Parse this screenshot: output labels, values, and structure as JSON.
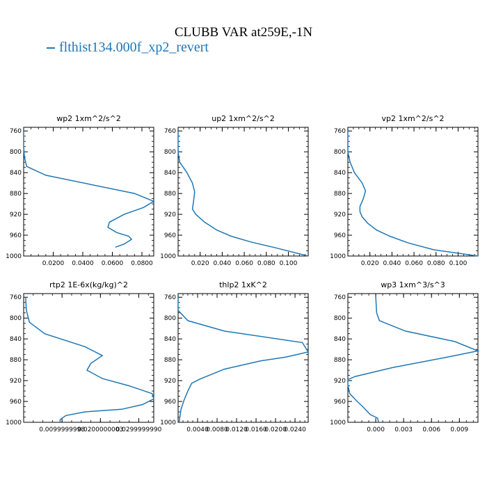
{
  "figure": {
    "title": "CLUBB VAR at259E,-1N",
    "legend_label": "flthist134.000f_xp2_revert",
    "line_color": "#1f77b4"
  },
  "chart_data": [
    {
      "type": "line",
      "title": "wp2  1xm^2/s^2",
      "xlim": [
        0.0,
        0.088
      ],
      "ylim": [
        1000,
        753
      ],
      "y_ticks": [
        760,
        800,
        840,
        880,
        920,
        960,
        1000
      ],
      "x_ticks": [
        0.02,
        0.04,
        0.06,
        0.08
      ],
      "x_tick_labels": [
        "0.0200",
        "0.0400",
        "0.0600",
        "0.0800"
      ],
      "series": [
        {
          "x": [
            0.0,
            0.0,
            0.0005,
            0.002,
            0.015,
            0.075,
            0.088,
            0.081,
            0.068,
            0.058,
            0.057,
            0.063,
            0.071,
            0.073,
            0.068,
            0.062
          ],
          "y": [
            760,
            790,
            810,
            828,
            845,
            880,
            895,
            907,
            920,
            935,
            945,
            955,
            962,
            968,
            977,
            983
          ]
        }
      ]
    },
    {
      "type": "line",
      "title": "up2  1xm^2/s^2",
      "xlim": [
        0.0,
        0.118
      ],
      "ylim": [
        1000,
        753
      ],
      "y_ticks": [
        760,
        800,
        840,
        880,
        920,
        960,
        1000
      ],
      "x_ticks": [
        0.02,
        0.04,
        0.06,
        0.08,
        0.1
      ],
      "x_tick_labels": [
        "0.020",
        "0.040",
        "0.060",
        "0.080",
        "0.100"
      ],
      "series": [
        {
          "x": [
            0.0,
            0.0,
            0.0015,
            0.008,
            0.013,
            0.015,
            0.014,
            0.013,
            0.016,
            0.024,
            0.035,
            0.048,
            0.066,
            0.09,
            0.118
          ],
          "y": [
            760,
            800,
            820,
            840,
            860,
            877,
            895,
            910,
            920,
            935,
            950,
            962,
            973,
            985,
            1000
          ]
        }
      ]
    },
    {
      "type": "line",
      "title": "vp2  1xm^2/s^2",
      "xlim": [
        0.0,
        0.118
      ],
      "ylim": [
        1000,
        753
      ],
      "y_ticks": [
        760,
        800,
        840,
        880,
        920,
        960,
        1000
      ],
      "x_ticks": [
        0.02,
        0.04,
        0.06,
        0.08,
        0.1
      ],
      "x_tick_labels": [
        "0.020",
        "0.040",
        "0.060",
        "0.080",
        "0.100"
      ],
      "series": [
        {
          "x": [
            0.0,
            0.0,
            0.002,
            0.006,
            0.013,
            0.016,
            0.014,
            0.011,
            0.011,
            0.013,
            0.018,
            0.026,
            0.038,
            0.055,
            0.078,
            0.118
          ],
          "y": [
            760,
            800,
            820,
            840,
            860,
            875,
            890,
            905,
            915,
            925,
            937,
            950,
            962,
            975,
            988,
            1000
          ]
        }
      ]
    },
    {
      "type": "line",
      "title": "rtp2  1E-6x(kg/kg)^2",
      "xlim": [
        0.0,
        0.0339
      ],
      "ylim": [
        1000,
        753
      ],
      "y_ticks": [
        760,
        800,
        840,
        880,
        920,
        960,
        1000
      ],
      "x_ticks": [
        0.0099999998,
        0.0200000003,
        0.029999999
      ],
      "x_tick_labels": [
        "0.0099999998",
        "0.0200000003",
        "0.0299999990"
      ],
      "series": [
        {
          "x": [
            0.0005,
            0.0007,
            0.0015,
            0.0055,
            0.016,
            0.0205,
            0.0175,
            0.0165,
            0.0205,
            0.0275,
            0.0335,
            0.0339,
            0.031,
            0.0255,
            0.016,
            0.011,
            0.0095,
            0.0095
          ],
          "y": [
            760,
            785,
            808,
            830,
            855,
            872,
            887,
            900,
            916,
            930,
            945,
            955,
            966,
            975,
            980,
            987,
            995,
            1000
          ]
        }
      ]
    },
    {
      "type": "line",
      "title": "thlp2  1xK^2",
      "xlim": [
        0.0,
        0.0267
      ],
      "ylim": [
        1000,
        753
      ],
      "y_ticks": [
        760,
        800,
        840,
        880,
        920,
        960,
        1000
      ],
      "x_ticks": [
        0.004,
        0.008,
        0.012,
        0.016,
        0.02,
        0.024
      ],
      "x_tick_labels": [
        "0.0040",
        "0.0080",
        "0.0120",
        "0.0160",
        "0.0200",
        "0.0240"
      ],
      "series": [
        {
          "x": [
            0.0,
            0.0,
            0.0005,
            0.002,
            0.0095,
            0.0255,
            0.0267,
            0.022,
            0.017,
            0.0095,
            0.0045,
            0.0028,
            0.002,
            0.0012,
            0.0006,
            0.0002
          ],
          "y": [
            760,
            785,
            790,
            805,
            825,
            847,
            865,
            875,
            882,
            898,
            917,
            925,
            940,
            958,
            975,
            1000
          ]
        }
      ]
    },
    {
      "type": "line",
      "title": "wp3  1xm^3/s^3",
      "xlim": [
        -0.003,
        0.011
      ],
      "ylim": [
        1000,
        753
      ],
      "y_ticks": [
        760,
        800,
        840,
        880,
        920,
        960,
        1000
      ],
      "x_ticks": [
        0.0,
        0.003,
        0.006,
        0.009
      ],
      "x_tick_labels": [
        "0.000",
        "0.003",
        "0.006",
        "0.009"
      ],
      "series": [
        {
          "x": [
            0.0,
            0.0001,
            0.0004,
            0.0032,
            0.0085,
            0.011,
            0.0074,
            0.0018,
            -0.0022,
            -0.003,
            -0.003,
            -0.0028,
            -0.002,
            -0.0014,
            -0.0006,
            0.0002,
            0.0003
          ],
          "y": [
            760,
            790,
            805,
            825,
            845,
            863,
            876,
            895,
            912,
            918,
            928,
            945,
            960,
            970,
            985,
            992,
            1000
          ]
        }
      ]
    }
  ]
}
